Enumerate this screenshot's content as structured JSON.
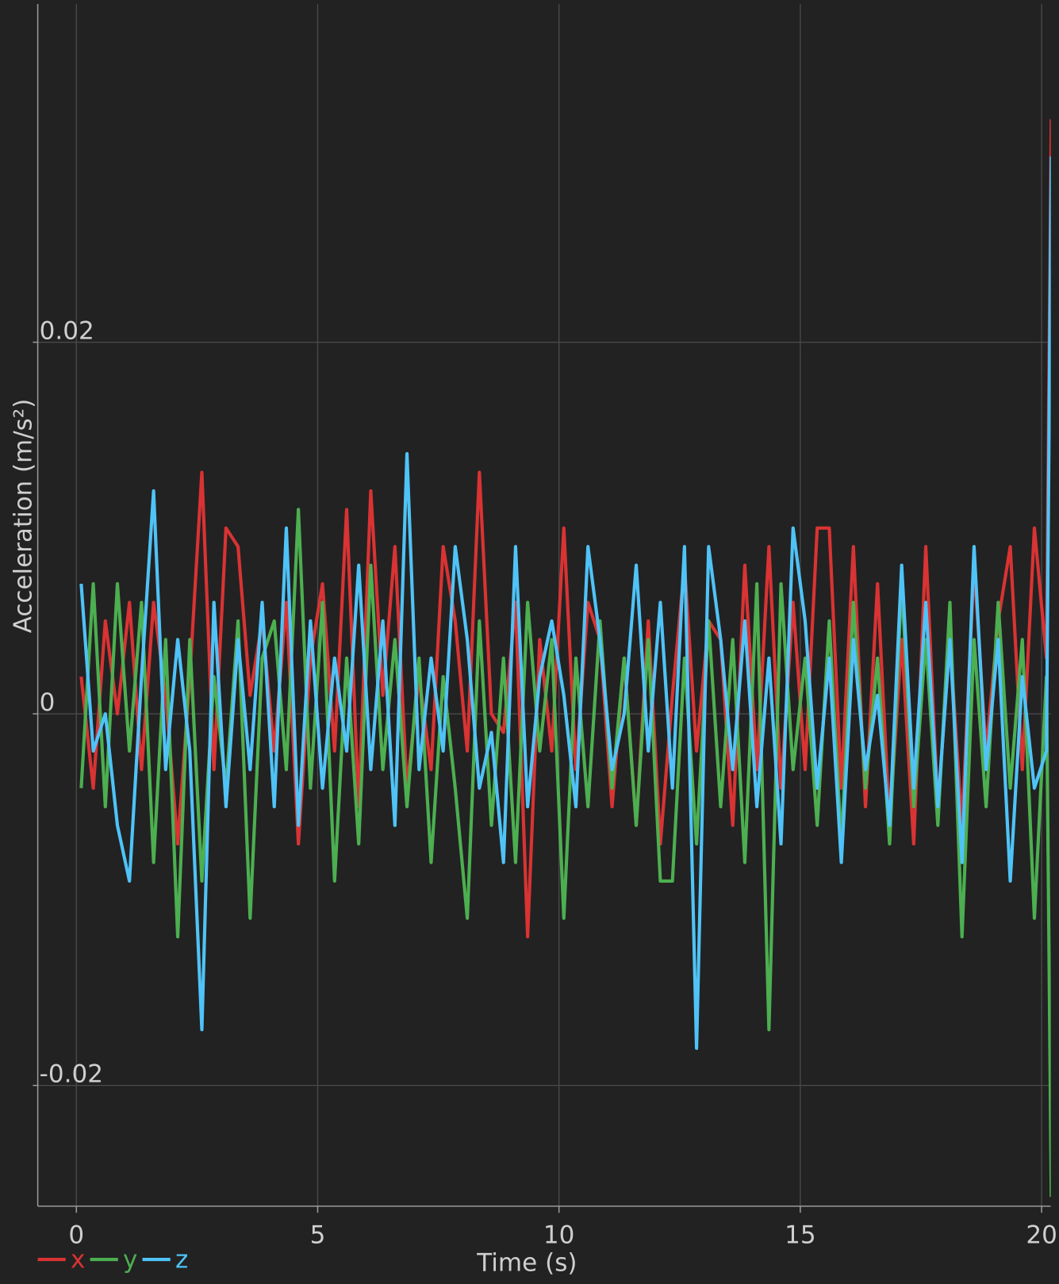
{
  "chart_data": {
    "type": "line",
    "x_label": "Time (s)",
    "y_label": "Acceleration (m/s²)",
    "xlim": [
      -0.8,
      20.19
    ],
    "ylim": [
      -0.0265,
      0.0382
    ],
    "xticks": [
      0,
      5,
      10,
      15,
      20
    ],
    "yticks": [
      -0.02,
      0,
      0.02
    ],
    "grid": true,
    "legend": "bottom-left",
    "x": [
      0.1,
      0.35,
      0.6,
      0.85,
      1.1,
      1.35,
      1.6,
      1.85,
      2.1,
      2.35,
      2.6,
      2.85,
      3.1,
      3.35,
      3.6,
      3.85,
      4.1,
      4.35,
      4.6,
      4.85,
      5.1,
      5.35,
      5.6,
      5.85,
      6.1,
      6.35,
      6.6,
      6.85,
      7.1,
      7.35,
      7.6,
      7.85,
      8.1,
      8.35,
      8.6,
      8.85,
      9.1,
      9.35,
      9.6,
      9.85,
      10.1,
      10.35,
      10.6,
      10.85,
      11.1,
      11.35,
      11.6,
      11.85,
      12.1,
      12.35,
      12.6,
      12.85,
      13.1,
      13.35,
      13.6,
      13.85,
      14.1,
      14.35,
      14.6,
      14.85,
      15.1,
      15.35,
      15.6,
      15.85,
      16.1,
      16.35,
      16.6,
      16.85,
      17.1,
      17.35,
      17.6,
      17.85,
      18.1,
      18.35,
      18.6,
      18.85,
      19.1,
      19.35,
      19.6,
      19.85,
      20.1,
      20.2
    ],
    "series": [
      {
        "name": "x",
        "color": "#d93333",
        "values": [
          0.002,
          -0.004,
          0.005,
          0,
          0.006,
          -0.003,
          0.006,
          0.001,
          -0.007,
          0.002,
          0.013,
          -0.003,
          0.01,
          0.009,
          0.001,
          0.005,
          -0.002,
          0.006,
          -0.007,
          0.003,
          0.007,
          -0.002,
          0.011,
          -0.005,
          0.012,
          0.001,
          0.009,
          -0.004,
          0.002,
          -0.003,
          0.009,
          0.005,
          -0.002,
          0.013,
          0,
          -0.001,
          0.006,
          -0.012,
          0.004,
          -0.002,
          0.01,
          -0.003,
          0.006,
          0.004,
          -0.005,
          0.003,
          -0.006,
          0.005,
          -0.007,
          0.001,
          0.008,
          -0.002,
          0.005,
          0.004,
          -0.006,
          0.008,
          -0.003,
          0.009,
          -0.004,
          0.006,
          -0.003,
          0.01,
          0.01,
          -0.004,
          0.009,
          -0.005,
          0.007,
          -0.006,
          0.004,
          -0.007,
          0.009,
          -0.005,
          0.004,
          -0.006,
          0.008,
          -0.002,
          0.005,
          0.009,
          -0.003,
          0.01,
          0.003,
          0.032
        ]
      },
      {
        "name": "y",
        "color": "#4caf50",
        "values": [
          -0.004,
          0.007,
          -0.005,
          0.007,
          -0.002,
          0.006,
          -0.008,
          0.004,
          -0.012,
          0.004,
          -0.009,
          0.002,
          -0.004,
          0.005,
          -0.011,
          0.003,
          0.005,
          -0.003,
          0.011,
          -0.004,
          0.006,
          -0.009,
          0.003,
          -0.007,
          0.008,
          -0.003,
          0.004,
          -0.005,
          0.003,
          -0.008,
          0.002,
          -0.004,
          -0.011,
          0.005,
          -0.006,
          0.003,
          -0.008,
          0.006,
          -0.002,
          0.004,
          -0.011,
          0.003,
          -0.005,
          0.005,
          -0.004,
          0.003,
          -0.006,
          0.004,
          -0.009,
          -0.009,
          0.003,
          -0.007,
          0.005,
          -0.005,
          0.004,
          -0.008,
          0.007,
          -0.017,
          0.007,
          -0.003,
          0.003,
          -0.006,
          0.005,
          -0.007,
          0.006,
          -0.004,
          0.003,
          -0.007,
          0.007,
          -0.005,
          0.004,
          -0.006,
          0.006,
          -0.012,
          0.004,
          -0.005,
          0.006,
          -0.004,
          0.004,
          -0.011,
          0.002,
          -0.026
        ]
      },
      {
        "name": "z",
        "color": "#4fc3f7",
        "values": [
          0.007,
          -0.002,
          0,
          -0.006,
          -0.009,
          0.002,
          0.012,
          -0.003,
          0.004,
          -0.002,
          -0.017,
          0.006,
          -0.005,
          0.004,
          -0.003,
          0.006,
          -0.005,
          0.01,
          -0.006,
          0.005,
          -0.004,
          0.003,
          -0.002,
          0.008,
          -0.003,
          0.005,
          -0.006,
          0.014,
          -0.003,
          0.003,
          -0.002,
          0.009,
          0.004,
          -0.004,
          -0.001,
          -0.008,
          0.009,
          -0.005,
          0.002,
          0.005,
          0.001,
          -0.005,
          0.009,
          0.004,
          -0.003,
          0,
          0.008,
          -0.002,
          0.006,
          -0.004,
          0.009,
          -0.018,
          0.009,
          0.004,
          -0.003,
          0.005,
          -0.005,
          0.003,
          -0.007,
          0.01,
          0.005,
          -0.004,
          0.003,
          -0.008,
          0.004,
          -0.003,
          0.001,
          -0.006,
          0.008,
          -0.004,
          0.006,
          -0.005,
          0.004,
          -0.008,
          0.009,
          -0.003,
          0.004,
          -0.009,
          0.002,
          -0.004,
          -0.002,
          0.03
        ]
      }
    ]
  }
}
